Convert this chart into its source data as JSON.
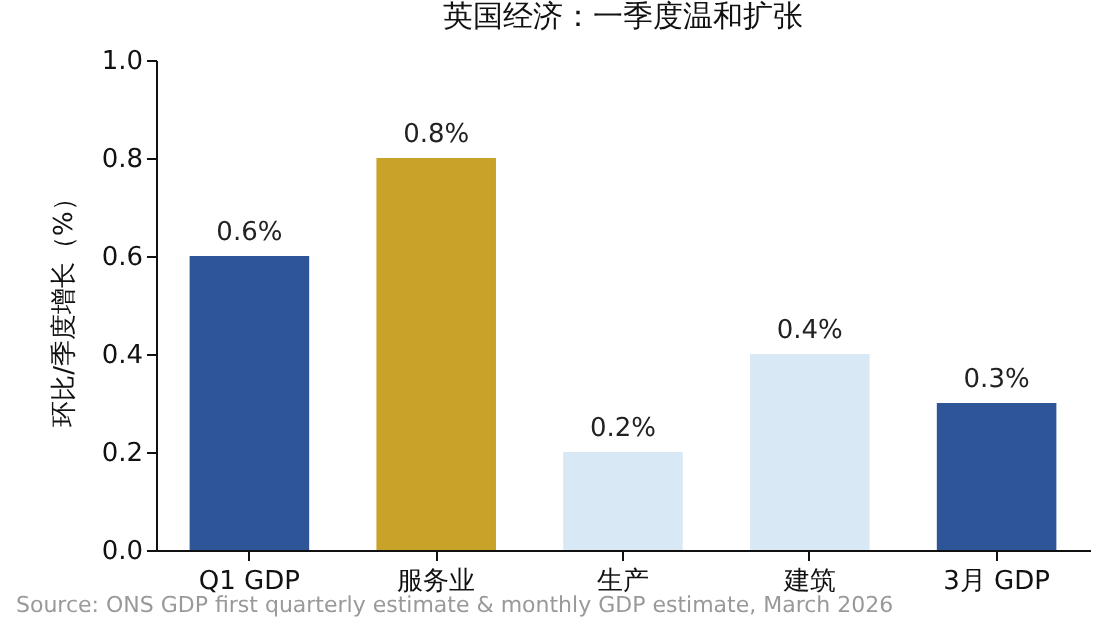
{
  "chart_data": {
    "type": "bar",
    "title": "英国经济：一季度温和扩张",
    "ylabel": "环比/季度增长（%）",
    "categories": [
      "Q1 GDP",
      "服务业",
      "生产",
      "建筑",
      "3月 GDP"
    ],
    "values": [
      0.6,
      0.8,
      0.2,
      0.4,
      0.3
    ],
    "colors": [
      "#2e5597",
      "#c9a22a",
      "#d8e8f5",
      "#d8e8f5",
      "#2e5597"
    ],
    "value_labels": [
      "0.6%",
      "0.8%",
      "0.2%",
      "0.4%",
      "0.3%"
    ],
    "ylim": [
      0,
      1.0
    ],
    "yticks": [
      {
        "value": 0,
        "label": "0.0"
      },
      {
        "value": 0.2,
        "label": "0.2"
      },
      {
        "value": 0.4,
        "label": "0.4"
      },
      {
        "value": 0.6,
        "label": "0.6"
      },
      {
        "value": 0.8,
        "label": "0.8"
      },
      {
        "value": 1.0,
        "label": "1.0"
      }
    ],
    "grid": false,
    "annotations": [
      "Source: ONS GDP first quarterly estimate & monthly GDP estimate, March 2026"
    ]
  }
}
